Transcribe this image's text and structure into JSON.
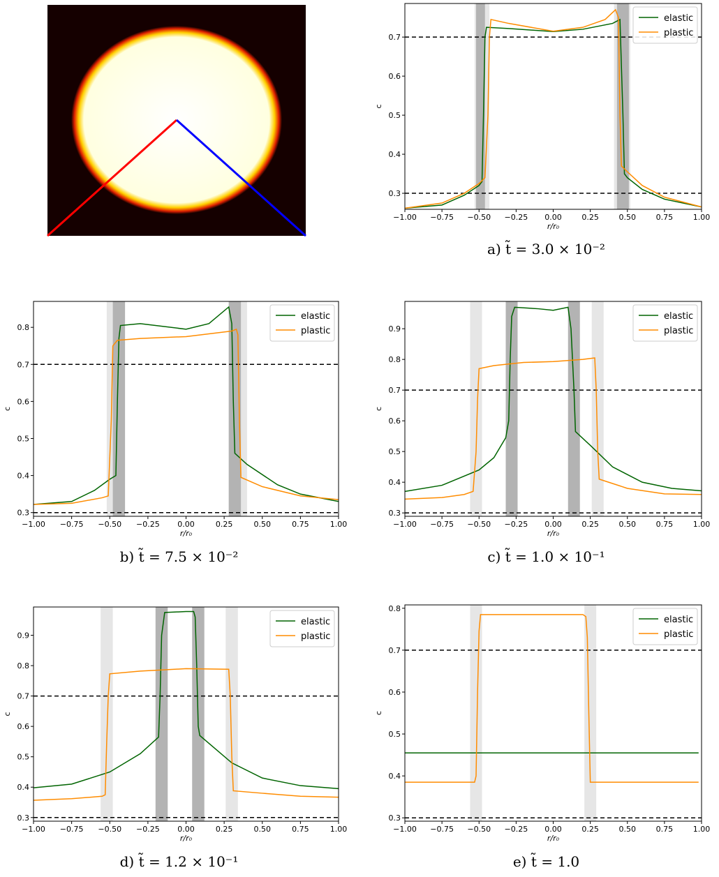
{
  "chart_data": [
    {
      "type": "line",
      "caption": "a) t̃ = 3.0 × 10⁻²",
      "x_label": "r/r₀",
      "y_label": "c",
      "legend": "upper right",
      "xlim": [
        -1,
        1
      ],
      "ylim": [
        0.259,
        0.786
      ],
      "xticks": [
        {
          "value": -1,
          "label": "−1.00"
        },
        {
          "value": -0.75,
          "label": "−0.75"
        },
        {
          "value": -0.5,
          "label": "−0.50"
        },
        {
          "value": -0.25,
          "label": "−0.25"
        },
        {
          "value": 0,
          "label": "0.00"
        },
        0.25,
        {
          "value": 0.5,
          "label": "0.50"
        },
        0.75,
        {
          "value": 1,
          "label": "1.00"
        }
      ],
      "yticks": [
        0.3,
        0.4,
        0.5,
        0.6,
        0.7
      ],
      "hlines": [
        0.3,
        0.7
      ],
      "bands": [
        {
          "x": [
            -0.53,
            -0.43
          ],
          "color": "#e6e6e6"
        },
        {
          "x": [
            -0.52,
            -0.46
          ],
          "color": "#b3b3b3"
        },
        {
          "x": [
            0.41,
            0.52
          ],
          "color": "#e6e6e6"
        },
        {
          "x": [
            0.43,
            0.51
          ],
          "color": "#b3b3b3"
        }
      ],
      "series": [
        {
          "name": "elastic",
          "color": "#006400",
          "x": [
            -1,
            -0.75,
            -0.6,
            -0.5,
            -0.48,
            -0.47,
            -0.46,
            -0.45,
            -0.3,
            0,
            0.2,
            0.4,
            0.45,
            0.47,
            0.48,
            0.5,
            0.6,
            0.75,
            1
          ],
          "values": [
            0.262,
            0.27,
            0.295,
            0.32,
            0.33,
            0.5,
            0.7,
            0.725,
            0.722,
            0.714,
            0.72,
            0.735,
            0.745,
            0.5,
            0.35,
            0.34,
            0.31,
            0.285,
            0.265
          ]
        },
        {
          "name": "plastic",
          "color": "#ff8c00",
          "x": [
            -1,
            -0.75,
            -0.6,
            -0.5,
            -0.46,
            -0.44,
            -0.43,
            -0.42,
            -0.3,
            0,
            0.2,
            0.35,
            0.42,
            0.44,
            0.45,
            0.46,
            0.5,
            0.6,
            0.75,
            1
          ],
          "values": [
            0.262,
            0.275,
            0.3,
            0.325,
            0.34,
            0.5,
            0.7,
            0.745,
            0.735,
            0.715,
            0.725,
            0.745,
            0.77,
            0.75,
            0.5,
            0.37,
            0.355,
            0.32,
            0.29,
            0.265
          ]
        }
      ]
    },
    {
      "type": "line",
      "caption": "b) t̃ = 7.5 × 10⁻²",
      "x_label": "r/r₀",
      "y_label": "c",
      "legend": "upper right",
      "xlim": [
        -1,
        1
      ],
      "ylim": [
        0.29,
        0.87
      ],
      "xticks": [
        {
          "value": -1,
          "label": "−1.00"
        },
        {
          "value": -0.75,
          "label": "−0.75"
        },
        {
          "value": -0.5,
          "label": "−0.50"
        },
        {
          "value": -0.25,
          "label": "−0.25"
        },
        {
          "value": 0,
          "label": "0.00"
        },
        0.25,
        {
          "value": 0.5,
          "label": "0.50"
        },
        0.75,
        {
          "value": 1,
          "label": "1.00"
        }
      ],
      "yticks": [
        0.3,
        0.4,
        0.5,
        0.6,
        0.7,
        0.8
      ],
      "hlines": [
        0.3,
        0.7
      ],
      "bands": [
        {
          "x": [
            -0.52,
            -0.4
          ],
          "color": "#e6e6e6"
        },
        {
          "x": [
            -0.48,
            -0.4
          ],
          "color": "#b3b3b3"
        },
        {
          "x": [
            0.28,
            0.4
          ],
          "color": "#e6e6e6"
        },
        {
          "x": [
            0.28,
            0.36
          ],
          "color": "#b3b3b3"
        }
      ],
      "series": [
        {
          "name": "elastic",
          "color": "#006400",
          "x": [
            -1,
            -0.75,
            -0.6,
            -0.5,
            -0.46,
            -0.45,
            -0.44,
            -0.43,
            -0.3,
            0,
            0.15,
            0.28,
            0.3,
            0.31,
            0.32,
            0.4,
            0.6,
            0.75,
            1
          ],
          "values": [
            0.322,
            0.33,
            0.36,
            0.39,
            0.4,
            0.6,
            0.77,
            0.805,
            0.81,
            0.795,
            0.81,
            0.855,
            0.81,
            0.6,
            0.46,
            0.43,
            0.375,
            0.35,
            0.33
          ]
        },
        {
          "name": "plastic",
          "color": "#ff8c00",
          "x": [
            -1,
            -0.75,
            -0.55,
            -0.51,
            -0.49,
            -0.48,
            -0.45,
            -0.3,
            0,
            0.3,
            0.33,
            0.34,
            0.35,
            0.36,
            0.5,
            0.75,
            1
          ],
          "values": [
            0.322,
            0.325,
            0.34,
            0.345,
            0.55,
            0.75,
            0.765,
            0.77,
            0.775,
            0.79,
            0.795,
            0.78,
            0.55,
            0.395,
            0.37,
            0.345,
            0.335
          ]
        }
      ]
    },
    {
      "type": "line",
      "caption": "c) t̃ = 1.0 × 10⁻¹",
      "x_label": "r/r₀",
      "y_label": "c",
      "legend": "upper right",
      "xlim": [
        -1,
        1
      ],
      "ylim": [
        0.289,
        0.989
      ],
      "xticks": [
        {
          "value": -1,
          "label": "−1.00"
        },
        {
          "value": -0.75,
          "label": "−0.75"
        },
        {
          "value": -0.5,
          "label": "−0.50"
        },
        {
          "value": -0.25,
          "label": "−0.25"
        },
        {
          "value": 0,
          "label": "0.00"
        },
        0.25,
        {
          "value": 0.5,
          "label": "0.50"
        },
        0.75,
        {
          "value": 1,
          "label": "1.00"
        }
      ],
      "yticks": [
        0.3,
        0.4,
        0.5,
        0.6,
        0.7,
        0.8,
        0.9
      ],
      "hlines": [
        0.3,
        0.7
      ],
      "bands": [
        {
          "x": [
            -0.56,
            -0.48
          ],
          "color": "#e6e6e6"
        },
        {
          "x": [
            -0.32,
            -0.24
          ],
          "color": "#b3b3b3"
        },
        {
          "x": [
            0.1,
            0.18
          ],
          "color": "#b3b3b3"
        },
        {
          "x": [
            0.26,
            0.34
          ],
          "color": "#e6e6e6"
        }
      ],
      "series": [
        {
          "name": "elastic",
          "color": "#006400",
          "x": [
            -1,
            -0.75,
            -0.5,
            -0.4,
            -0.32,
            -0.3,
            -0.29,
            -0.28,
            -0.26,
            -0.1,
            0,
            0.1,
            0.12,
            0.14,
            0.15,
            0.25,
            0.4,
            0.6,
            0.8,
            1
          ],
          "values": [
            0.37,
            0.39,
            0.44,
            0.48,
            0.545,
            0.6,
            0.8,
            0.94,
            0.97,
            0.965,
            0.96,
            0.97,
            0.9,
            0.7,
            0.565,
            0.52,
            0.45,
            0.4,
            0.38,
            0.372
          ]
        },
        {
          "name": "plastic",
          "color": "#ff8c00",
          "x": [
            -1,
            -0.75,
            -0.6,
            -0.54,
            -0.52,
            -0.51,
            -0.5,
            -0.4,
            -0.2,
            0,
            0.2,
            0.28,
            0.29,
            0.3,
            0.31,
            0.5,
            0.75,
            1
          ],
          "values": [
            0.345,
            0.35,
            0.36,
            0.37,
            0.5,
            0.67,
            0.77,
            0.78,
            0.79,
            0.793,
            0.8,
            0.805,
            0.7,
            0.5,
            0.41,
            0.38,
            0.362,
            0.36
          ]
        }
      ]
    },
    {
      "type": "line",
      "caption": "d) t̃ = 1.2 × 10⁻¹",
      "x_label": "r/r₀",
      "y_label": "c",
      "legend": "upper right",
      "xlim": [
        -1,
        1
      ],
      "ylim": [
        0.288,
        0.993
      ],
      "xticks": [
        {
          "value": -1,
          "label": "−1.00"
        },
        {
          "value": -0.75,
          "label": "−0.75"
        },
        {
          "value": -0.5,
          "label": "−0.50"
        },
        {
          "value": -0.25,
          "label": "−0.25"
        },
        {
          "value": 0,
          "label": "0.00"
        },
        0.25,
        {
          "value": 0.5,
          "label": "0.50"
        },
        0.75,
        {
          "value": 1,
          "label": "1.00"
        }
      ],
      "yticks": [
        0.3,
        0.4,
        0.5,
        0.6,
        0.7,
        0.8,
        0.9
      ],
      "hlines": [
        0.3,
        0.7
      ],
      "bands": [
        {
          "x": [
            -0.56,
            -0.48
          ],
          "color": "#e6e6e6"
        },
        {
          "x": [
            -0.2,
            -0.12
          ],
          "color": "#b3b3b3"
        },
        {
          "x": [
            0.04,
            0.12
          ],
          "color": "#b3b3b3"
        },
        {
          "x": [
            0.26,
            0.34
          ],
          "color": "#e6e6e6"
        }
      ],
      "series": [
        {
          "name": "elastic",
          "color": "#006400",
          "x": [
            -1,
            -0.75,
            -0.5,
            -0.3,
            -0.18,
            -0.17,
            -0.16,
            -0.14,
            0,
            0.05,
            0.06,
            0.07,
            0.08,
            0.09,
            0.3,
            0.5,
            0.75,
            1
          ],
          "values": [
            0.398,
            0.41,
            0.45,
            0.51,
            0.565,
            0.7,
            0.9,
            0.975,
            0.978,
            0.978,
            0.96,
            0.8,
            0.6,
            0.57,
            0.48,
            0.43,
            0.405,
            0.395
          ]
        },
        {
          "name": "plastic",
          "color": "#ff8c00",
          "x": [
            -1,
            -0.75,
            -0.55,
            -0.53,
            -0.52,
            -0.51,
            -0.5,
            -0.3,
            0,
            0.28,
            0.29,
            0.3,
            0.31,
            0.5,
            0.75,
            1
          ],
          "values": [
            0.357,
            0.362,
            0.37,
            0.375,
            0.55,
            0.7,
            0.773,
            0.782,
            0.79,
            0.788,
            0.7,
            0.5,
            0.388,
            0.38,
            0.37,
            0.367
          ]
        }
      ]
    },
    {
      "type": "line",
      "caption": "e) t̃ = 1.0",
      "x_label": "r/r₀",
      "y_label": "c",
      "legend": "upper right",
      "xlim": [
        -1,
        1
      ],
      "ylim": [
        0.292,
        0.808
      ],
      "xticks": [
        {
          "value": -1,
          "label": "−1.00"
        },
        {
          "value": -0.75,
          "label": "−0.75"
        },
        {
          "value": -0.5,
          "label": "−0.50"
        },
        {
          "value": -0.25,
          "label": "−0.25"
        },
        {
          "value": 0,
          "label": "0.00"
        },
        0.25,
        {
          "value": 0.5,
          "label": "0.50"
        },
        0.75,
        {
          "value": 1,
          "label": "1.00"
        }
      ],
      "yticks": [
        0.3,
        0.4,
        0.5,
        0.6,
        0.7,
        0.8
      ],
      "hlines": [
        0.3,
        0.7
      ],
      "bands": [
        {
          "x": [
            -0.56,
            -0.48
          ],
          "color": "#e6e6e6"
        },
        {
          "x": [
            0.21,
            0.29
          ],
          "color": "#e6e6e6"
        }
      ],
      "series": [
        {
          "name": "elastic",
          "color": "#006400",
          "x": [
            -1,
            0.98
          ],
          "values": [
            0.455,
            0.455
          ]
        },
        {
          "name": "plastic",
          "color": "#ff8c00",
          "x": [
            -1,
            -0.53,
            -0.52,
            -0.51,
            -0.5,
            -0.49,
            0,
            0.2,
            0.22,
            0.23,
            0.24,
            0.25,
            0.98
          ],
          "values": [
            0.385,
            0.385,
            0.4,
            0.6,
            0.745,
            0.785,
            0.785,
            0.785,
            0.78,
            0.73,
            0.55,
            0.385,
            0.385
          ]
        }
      ]
    }
  ]
}
